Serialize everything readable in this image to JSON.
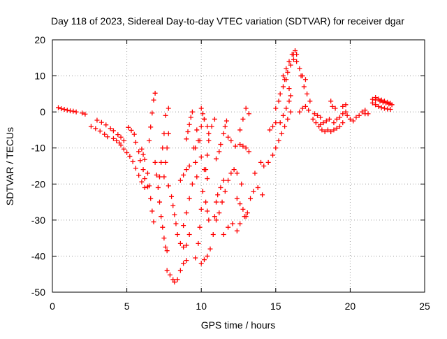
{
  "chart_data": {
    "type": "scatter",
    "title": "Day 118 of 2023, Sidereal Day-to-day VTEC variation (SDTVAR) for receiver dgar",
    "xlabel": "GPS time / hours",
    "ylabel": "SDTVAR / TECUs",
    "xlim": [
      0,
      25
    ],
    "ylim": [
      -50,
      20
    ],
    "xticks": [
      0,
      5,
      10,
      15,
      20,
      25
    ],
    "yticks": [
      -50,
      -40,
      -30,
      -20,
      -10,
      0,
      10,
      20
    ],
    "grid": true,
    "marker": "+",
    "color": "#ff0000",
    "series": [
      {
        "values_xy": [
          [
            0.4,
            1.2
          ],
          [
            0.6,
            0.9
          ],
          [
            0.8,
            0.7
          ],
          [
            1.0,
            0.5
          ],
          [
            1.2,
            0.3
          ],
          [
            1.4,
            0.2
          ],
          [
            1.6,
            0.0
          ],
          [
            2.0,
            -0.3
          ],
          [
            2.2,
            -0.6
          ],
          [
            2.6,
            -4.0
          ],
          [
            2.9,
            -4.6
          ],
          [
            3.2,
            -5.3
          ],
          [
            3.5,
            -6.2
          ],
          [
            3.7,
            -6.9
          ],
          [
            3.0,
            -2.3
          ],
          [
            3.3,
            -2.9
          ],
          [
            3.6,
            -3.6
          ],
          [
            3.9,
            -4.6
          ],
          [
            4.1,
            -5.2
          ],
          [
            4.1,
            -7.4
          ],
          [
            4.3,
            -8.0
          ],
          [
            4.5,
            -8.6
          ],
          [
            4.6,
            -9.2
          ],
          [
            4.8,
            -10.3
          ],
          [
            5.0,
            -11.3
          ],
          [
            5.2,
            -12.3
          ],
          [
            4.4,
            -6.3
          ],
          [
            4.6,
            -7.0
          ],
          [
            4.8,
            -8.0
          ],
          [
            5.1,
            -4.3
          ],
          [
            5.3,
            -5.1
          ],
          [
            5.5,
            -6.2
          ],
          [
            5.6,
            -8.4
          ],
          [
            5.8,
            -11.0
          ],
          [
            5.9,
            -13.5
          ],
          [
            6.1,
            -16.0
          ],
          [
            6.2,
            -18.5
          ],
          [
            6.4,
            -20.8
          ],
          [
            5.4,
            -13.8
          ],
          [
            5.6,
            -15.6
          ],
          [
            5.8,
            -17.6
          ],
          [
            6.0,
            -19.4
          ],
          [
            6.2,
            -21.0
          ],
          [
            6.0,
            -10.3
          ],
          [
            6.1,
            -11.8
          ],
          [
            6.2,
            -13.2
          ],
          [
            6.4,
            -17.0
          ],
          [
            6.5,
            -20.5
          ],
          [
            6.6,
            -24.0
          ],
          [
            6.7,
            -27.5
          ],
          [
            6.8,
            -30.5
          ],
          [
            6.5,
            -8.0
          ],
          [
            6.6,
            -4.2
          ],
          [
            6.7,
            -0.3
          ],
          [
            6.8,
            3.3
          ],
          [
            6.9,
            5.2
          ],
          [
            6.9,
            -14.0
          ],
          [
            7.0,
            -17.5
          ],
          [
            7.1,
            -21.0
          ],
          [
            7.2,
            -25.0
          ],
          [
            7.3,
            -29.0
          ],
          [
            7.4,
            -32.0
          ],
          [
            7.5,
            -35.0
          ],
          [
            7.6,
            -37.5
          ],
          [
            7.7,
            -38.5
          ],
          [
            7.2,
            -18.0
          ],
          [
            7.3,
            -14.0
          ],
          [
            7.4,
            -10.0
          ],
          [
            7.5,
            -6.0
          ],
          [
            7.6,
            -1.0
          ],
          [
            7.8,
            1.0
          ],
          [
            7.5,
            -18.0
          ],
          [
            7.6,
            -14.0
          ],
          [
            7.7,
            -10.0
          ],
          [
            7.8,
            -6.0
          ],
          [
            7.8,
            -20.5
          ],
          [
            8.0,
            -23.5
          ],
          [
            8.1,
            -26.0
          ],
          [
            8.2,
            -28.5
          ],
          [
            8.3,
            -31.0
          ],
          [
            8.4,
            -34.0
          ],
          [
            8.6,
            -36.5
          ],
          [
            8.8,
            -37.5
          ],
          [
            9.0,
            -37.0
          ],
          [
            9.2,
            -34.0
          ],
          [
            7.7,
            -44.0
          ],
          [
            7.9,
            -45.2
          ],
          [
            8.1,
            -46.5
          ],
          [
            8.2,
            -47.2
          ],
          [
            8.4,
            -46.5
          ],
          [
            8.6,
            -44.0
          ],
          [
            8.8,
            -42.0
          ],
          [
            9.0,
            -41.2
          ],
          [
            8.8,
            -31.5
          ],
          [
            9.0,
            -28.0
          ],
          [
            9.2,
            -24.0
          ],
          [
            9.4,
            -20.0
          ],
          [
            8.6,
            -19.0
          ],
          [
            8.8,
            -17.5
          ],
          [
            9.0,
            -16.0
          ],
          [
            9.2,
            -15.0
          ],
          [
            9.0,
            -7.5
          ],
          [
            9.1,
            -5.5
          ],
          [
            9.2,
            -3.5
          ],
          [
            9.3,
            -1.5
          ],
          [
            9.4,
            0.0
          ],
          [
            9.6,
            -40.5
          ],
          [
            9.8,
            -36.5
          ],
          [
            9.9,
            -32.0
          ],
          [
            10.0,
            -27.0
          ],
          [
            10.1,
            -22.0
          ],
          [
            10.3,
            -16.0
          ],
          [
            10.4,
            -12.0
          ],
          [
            10.5,
            -8.0
          ],
          [
            10.7,
            -4.0
          ],
          [
            10.9,
            -2.0
          ],
          [
            10.0,
            -42.0
          ],
          [
            10.2,
            -41.0
          ],
          [
            10.4,
            -40.0
          ],
          [
            10.6,
            -38.0
          ],
          [
            10.8,
            -34.0
          ],
          [
            10.9,
            -29.0
          ],
          [
            11.0,
            -25.0
          ],
          [
            9.6,
            -10.0
          ],
          [
            9.9,
            -8.0
          ],
          [
            10.0,
            -4.0
          ],
          [
            10.2,
            -2.0
          ],
          [
            10.1,
            -22.0
          ],
          [
            10.3,
            -25.0
          ],
          [
            10.4,
            -27.5
          ],
          [
            10.5,
            -30.0
          ],
          [
            9.7,
            -5.0
          ],
          [
            9.8,
            -8.0
          ],
          [
            10.0,
            -12.5
          ],
          [
            10.2,
            -16.0
          ],
          [
            10.4,
            -18.5
          ],
          [
            9.5,
            -10.0
          ],
          [
            9.6,
            -14.0
          ],
          [
            9.7,
            -18.0
          ],
          [
            10.0,
            1.0
          ],
          [
            10.1,
            -0.5
          ],
          [
            10.2,
            -2.0
          ],
          [
            10.4,
            -4.0
          ],
          [
            10.5,
            -6.0
          ],
          [
            11.0,
            -30.0
          ],
          [
            11.2,
            -28.0
          ],
          [
            11.4,
            -25.0
          ],
          [
            11.6,
            -22.0
          ],
          [
            11.8,
            -19.0
          ],
          [
            12.0,
            -17.0
          ],
          [
            11.1,
            -23.0
          ],
          [
            11.3,
            -21.0
          ],
          [
            11.5,
            -19.0
          ],
          [
            11.0,
            -13.0
          ],
          [
            11.2,
            -11.0
          ],
          [
            11.3,
            -9.0
          ],
          [
            11.5,
            -6.0
          ],
          [
            11.6,
            -4.0
          ],
          [
            11.7,
            -2.5
          ],
          [
            11.5,
            -34.0
          ],
          [
            11.8,
            -32.0
          ],
          [
            12.1,
            -31.0
          ],
          [
            12.2,
            -16.0
          ],
          [
            12.4,
            -17.0
          ],
          [
            12.7,
            -20.0
          ],
          [
            11.8,
            -7.0
          ],
          [
            12.0,
            -8.0
          ],
          [
            12.3,
            -9.5
          ],
          [
            12.6,
            -5.0
          ],
          [
            12.8,
            -2.0
          ],
          [
            13.0,
            1.0
          ],
          [
            13.2,
            -0.5
          ],
          [
            12.6,
            -9.0
          ],
          [
            12.8,
            -9.5
          ],
          [
            13.0,
            -10.0
          ],
          [
            13.2,
            -11.0
          ],
          [
            12.4,
            -24.0
          ],
          [
            12.6,
            -25.5
          ],
          [
            12.8,
            -27.0
          ],
          [
            13.0,
            -29.0
          ],
          [
            13.1,
            -28.0
          ],
          [
            13.3,
            -24.0
          ],
          [
            13.5,
            -22.0
          ],
          [
            12.4,
            -33.0
          ],
          [
            12.6,
            -31.0
          ],
          [
            12.9,
            -29.0
          ],
          [
            13.6,
            -17.0
          ],
          [
            13.8,
            -21.0
          ],
          [
            14.1,
            -23.0
          ],
          [
            14.0,
            -14.0
          ],
          [
            14.2,
            -15.0
          ],
          [
            14.5,
            -14.0
          ],
          [
            14.8,
            -12.0
          ],
          [
            15.0,
            -10.0
          ],
          [
            14.6,
            -5.0
          ],
          [
            14.8,
            -4.0
          ],
          [
            15.0,
            -3.0
          ],
          [
            15.0,
            1.0
          ],
          [
            15.2,
            3.0
          ],
          [
            15.3,
            5.0
          ],
          [
            15.5,
            7.0
          ],
          [
            15.6,
            9.0
          ],
          [
            15.8,
            11.0
          ],
          [
            16.0,
            13.0
          ],
          [
            16.2,
            14.5
          ],
          [
            16.4,
            16.0
          ],
          [
            15.3,
            -3.0
          ],
          [
            15.5,
            -1.0
          ],
          [
            15.7,
            1.0
          ],
          [
            15.9,
            3.0
          ],
          [
            15.2,
            -8.0
          ],
          [
            15.4,
            -6.0
          ],
          [
            15.6,
            -4.0
          ],
          [
            15.8,
            -2.0
          ],
          [
            16.0,
            0.0
          ],
          [
            15.7,
            9.0
          ],
          [
            15.9,
            6.5
          ],
          [
            16.0,
            4.5
          ],
          [
            15.5,
            10.0
          ],
          [
            15.7,
            12.0
          ],
          [
            15.9,
            14.0
          ],
          [
            16.1,
            16.0
          ],
          [
            16.3,
            17.0
          ],
          [
            16.7,
            10.0
          ],
          [
            16.9,
            7.0
          ],
          [
            17.1,
            5.0
          ],
          [
            17.3,
            3.0
          ],
          [
            16.2,
            16.0
          ],
          [
            16.4,
            14.0
          ],
          [
            16.6,
            12.0
          ],
          [
            16.8,
            10.0
          ],
          [
            17.0,
            9.0
          ],
          [
            16.6,
            0.0
          ],
          [
            16.8,
            1.0
          ],
          [
            17.0,
            1.5
          ],
          [
            17.2,
            0.5
          ],
          [
            17.5,
            -2.0
          ],
          [
            17.7,
            -3.0
          ],
          [
            17.9,
            -4.0
          ],
          [
            18.1,
            -5.0
          ],
          [
            18.3,
            -5.5
          ],
          [
            18.5,
            -5.0
          ],
          [
            17.6,
            -0.5
          ],
          [
            17.8,
            -1.0
          ],
          [
            18.0,
            -1.5
          ],
          [
            18.7,
            -5.5
          ],
          [
            18.9,
            -5.0
          ],
          [
            19.1,
            -4.5
          ],
          [
            19.3,
            -4.0
          ],
          [
            19.5,
            -3.0
          ],
          [
            18.9,
            -3.0
          ],
          [
            19.1,
            -2.0
          ],
          [
            19.3,
            -1.5
          ],
          [
            19.5,
            -0.5
          ],
          [
            19.7,
            0.0
          ],
          [
            18.0,
            -3.5
          ],
          [
            18.2,
            -3.0
          ],
          [
            18.4,
            -2.5
          ],
          [
            18.6,
            -2.0
          ],
          [
            18.7,
            3.0
          ],
          [
            18.8,
            1.5
          ],
          [
            19.0,
            1.0
          ],
          [
            19.8,
            -1.0
          ],
          [
            20.0,
            -2.0
          ],
          [
            20.2,
            -2.5
          ],
          [
            19.5,
            1.5
          ],
          [
            19.7,
            2.0
          ],
          [
            20.4,
            -1.5
          ],
          [
            20.6,
            -1.0
          ],
          [
            20.8,
            0.0
          ],
          [
            21.0,
            0.5
          ],
          [
            21.0,
            -0.5
          ],
          [
            21.2,
            -0.5
          ],
          [
            21.5,
            2.5
          ],
          [
            21.7,
            2.0
          ],
          [
            21.9,
            1.5
          ],
          [
            22.1,
            1.2
          ],
          [
            22.3,
            1.0
          ],
          [
            22.5,
            0.8
          ],
          [
            22.7,
            0.7
          ],
          [
            21.7,
            4.0
          ],
          [
            21.9,
            3.6
          ],
          [
            22.1,
            3.3
          ],
          [
            22.3,
            3.0
          ],
          [
            22.5,
            2.7
          ],
          [
            22.7,
            2.4
          ],
          [
            21.5,
            3.5
          ],
          [
            21.7,
            3.3
          ],
          [
            22.0,
            3.0
          ],
          [
            22.2,
            2.7
          ],
          [
            22.4,
            2.5
          ],
          [
            22.6,
            2.2
          ],
          [
            22.8,
            2.0
          ]
        ]
      }
    ]
  }
}
